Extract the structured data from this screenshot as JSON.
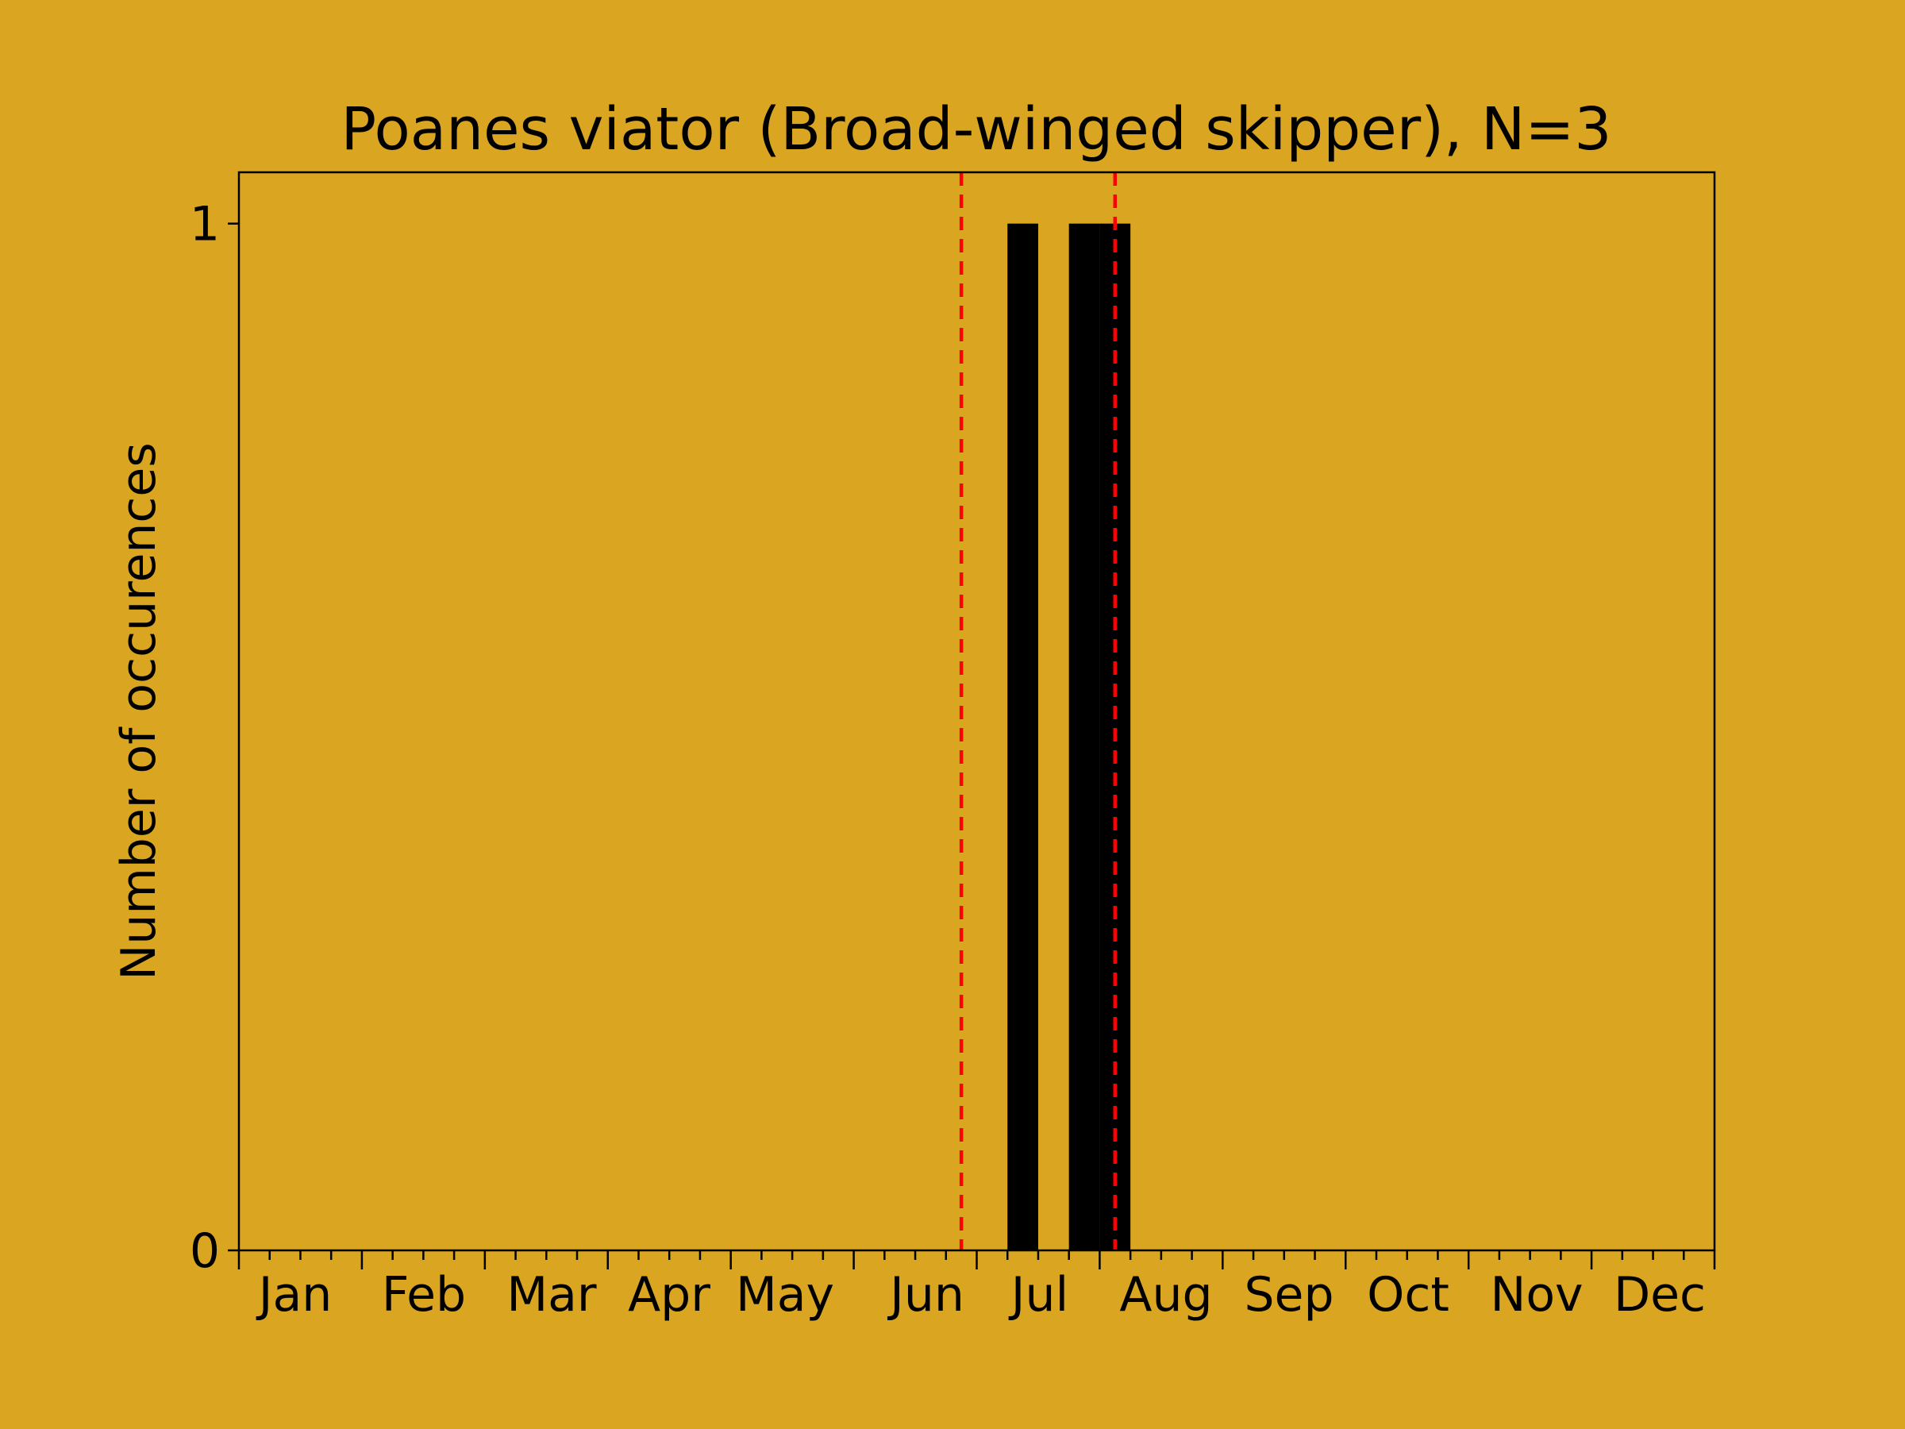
{
  "chart_data": {
    "type": "bar",
    "title": "Poanes viator (Broad-winged skipper), N=3",
    "xlabel": "",
    "ylabel": "Number of occurences",
    "background_color": "#DAA520",
    "bar_color": "#000000",
    "xlim": [
      0,
      48
    ],
    "ylim": [
      0,
      1.05
    ],
    "grid": false,
    "x_unit": "week bin (4 per month)",
    "month_labels": [
      "Jan",
      "Feb",
      "Mar",
      "Apr",
      "May",
      "Jun",
      "Jul",
      "Aug",
      "Sep",
      "Oct",
      "Nov",
      "Dec"
    ],
    "yticks": [
      0,
      1
    ],
    "ytick_labels": [
      "0",
      "1"
    ],
    "values": [
      0,
      0,
      0,
      0,
      0,
      0,
      0,
      0,
      0,
      0,
      0,
      0,
      0,
      0,
      0,
      0,
      0,
      0,
      0,
      0,
      0,
      0,
      0,
      0,
      0,
      1,
      0,
      1,
      1,
      0,
      0,
      0,
      0,
      0,
      0,
      0,
      0,
      0,
      0,
      0,
      0,
      0,
      0,
      0,
      0,
      0,
      0,
      0
    ],
    "reference_lines": {
      "color": "#FF0000",
      "style": "dashed",
      "x": [
        23.5,
        28.5
      ]
    }
  }
}
